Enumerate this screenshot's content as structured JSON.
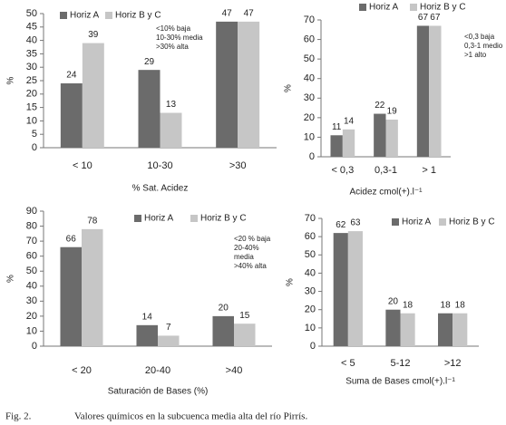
{
  "chart_data": [
    {
      "type": "bar",
      "categories": [
        "< 10",
        "10-30",
        ">30"
      ],
      "series": [
        {
          "name": "Horiz A",
          "color": "#6b6b6b",
          "values": [
            24,
            29,
            47
          ]
        },
        {
          "name": "Horiz B y C",
          "color": "#c6c6c6",
          "values": [
            39,
            13,
            47
          ]
        }
      ],
      "ylim": [
        0,
        50
      ],
      "yticks": [
        0,
        5,
        10,
        15,
        20,
        25,
        30,
        35,
        40,
        45,
        50
      ],
      "y_label": "%",
      "x_label": "% Sat. Acidez",
      "annotation": [
        "<10% baja",
        "10-30% media",
        ">30% alta"
      ]
    },
    {
      "type": "bar",
      "categories": [
        "< 0,3",
        "0,3-1",
        "> 1"
      ],
      "series": [
        {
          "name": "Horiz A",
          "color": "#6b6b6b",
          "values": [
            11,
            22,
            67
          ]
        },
        {
          "name": "Horiz B y C",
          "color": "#c6c6c6",
          "values": [
            14,
            19,
            67
          ]
        }
      ],
      "ylim": [
        0,
        70
      ],
      "yticks": [
        0,
        10,
        20,
        30,
        40,
        50,
        60,
        70
      ],
      "y_label": "%",
      "x_label": "Acidez cmol(+).l⁻¹",
      "annotation": [
        "<0,3 baja",
        "0,3-1 medio",
        ">1 alto"
      ]
    },
    {
      "type": "bar",
      "categories": [
        "< 20",
        "20-40",
        ">40"
      ],
      "series": [
        {
          "name": "Horiz A",
          "color": "#6b6b6b",
          "values": [
            66,
            14,
            20
          ]
        },
        {
          "name": "Horiz B y C",
          "color": "#c6c6c6",
          "values": [
            78,
            7,
            15
          ]
        }
      ],
      "ylim": [
        0,
        90
      ],
      "yticks": [
        0,
        10,
        20,
        30,
        40,
        50,
        60,
        70,
        80,
        90
      ],
      "y_label": "%",
      "x_label": "Saturación de Bases (%)",
      "annotation": [
        "<20 % baja",
        "20-40%",
        "media",
        ">40% alta"
      ]
    },
    {
      "type": "bar",
      "categories": [
        "< 5",
        "5-12",
        ">12"
      ],
      "series": [
        {
          "name": "Horiz A",
          "color": "#6b6b6b",
          "values": [
            62,
            20,
            18
          ]
        },
        {
          "name": "Horiz B y C",
          "color": "#c6c6c6",
          "values": [
            63,
            18,
            18
          ]
        }
      ],
      "ylim": [
        0,
        70
      ],
      "yticks": [
        0,
        10,
        20,
        30,
        40,
        50,
        60,
        70
      ],
      "y_label": "%",
      "x_label": "Suma de Bases cmol(+).l⁻¹"
    }
  ],
  "caption": {
    "label": "Fig. 2.",
    "text": "Valores químicos en la subcuenca media alta del río Pirrís."
  }
}
